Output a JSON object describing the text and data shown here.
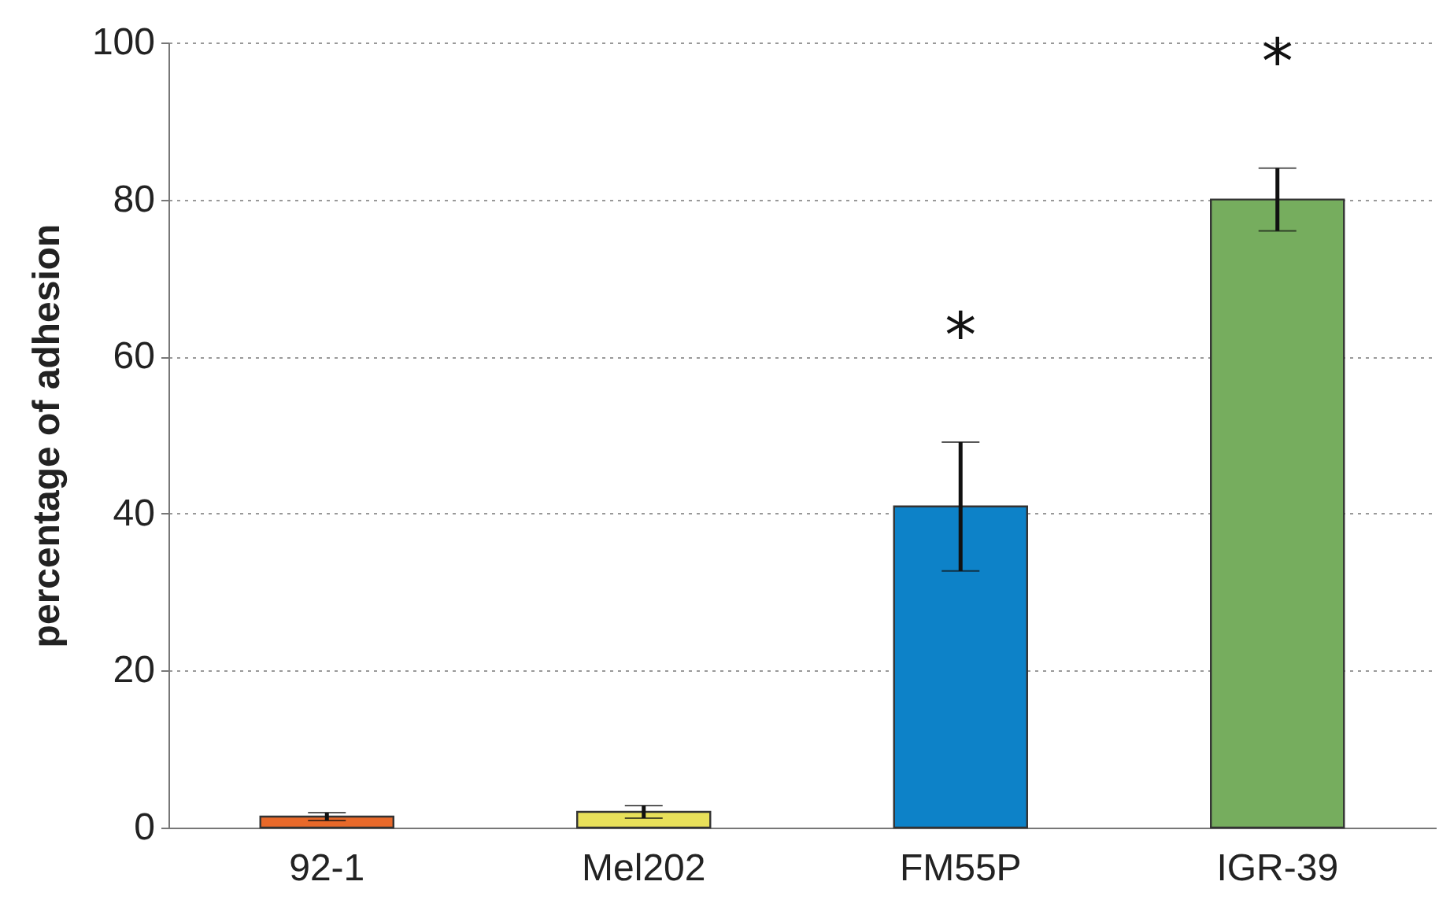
{
  "chart_data": {
    "type": "bar",
    "ylabel": "percentage of adhesion",
    "categories": [
      "92-1",
      "Mel202",
      "FM55P",
      "IGR-39"
    ],
    "values": [
      1.4,
      2.0,
      40.9,
      80.0
    ],
    "colors": [
      "#e8692a",
      "#e8e05a",
      "#0d82c8",
      "#76ad5e"
    ],
    "errors": [
      0.5,
      0.8,
      8.2,
      4.0
    ],
    "ylim": [
      0,
      100
    ],
    "yticks": [
      0,
      20,
      40,
      60,
      80,
      100
    ],
    "grid": "y",
    "annotations": [
      {
        "text": "*",
        "x": "FM55P",
        "y": 49.1
      },
      {
        "text": "*",
        "x": "IGR-39",
        "y": 84
      }
    ]
  }
}
